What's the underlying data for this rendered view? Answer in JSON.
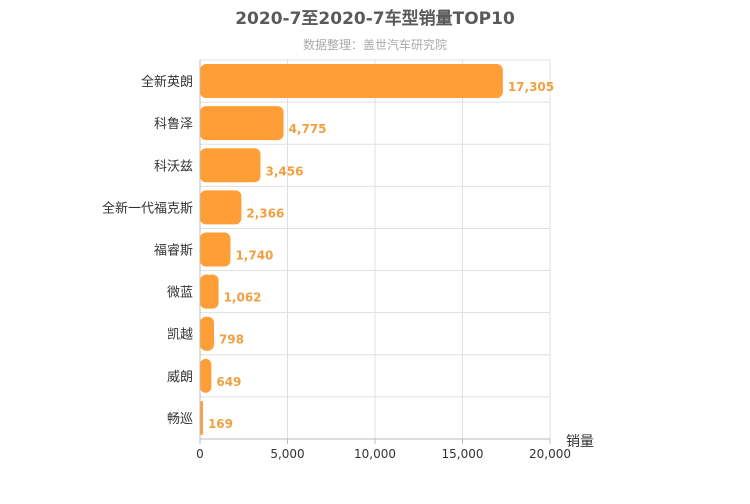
{
  "chart_data": {
    "type": "bar",
    "orientation": "horizontal",
    "title": "2020-7至2020-7车型销量TOP10",
    "subtitle": "数据整理：盖世汽车研究院",
    "xlabel": "销量",
    "ylabel": "",
    "categories": [
      "全新英朗",
      "科鲁泽",
      "科沃兹",
      "全新一代福克斯",
      "福睿斯",
      "微蓝",
      "凯越",
      "威朗",
      "畅巡"
    ],
    "values": [
      17305,
      4775,
      3456,
      2366,
      1740,
      1062,
      798,
      649,
      169
    ],
    "value_labels": [
      "17,305",
      "4,775",
      "3,456",
      "2,366",
      "1,740",
      "1,062",
      "798",
      "649",
      "169"
    ],
    "xlim": [
      0,
      20000
    ],
    "xticks": [
      0,
      5000,
      10000,
      15000,
      20000
    ],
    "xtick_labels": [
      "0",
      "5,000",
      "10,000",
      "15,000",
      "20,000"
    ],
    "grid": true,
    "bar_color": "#ff9d37",
    "label_color": "#f0a040"
  }
}
